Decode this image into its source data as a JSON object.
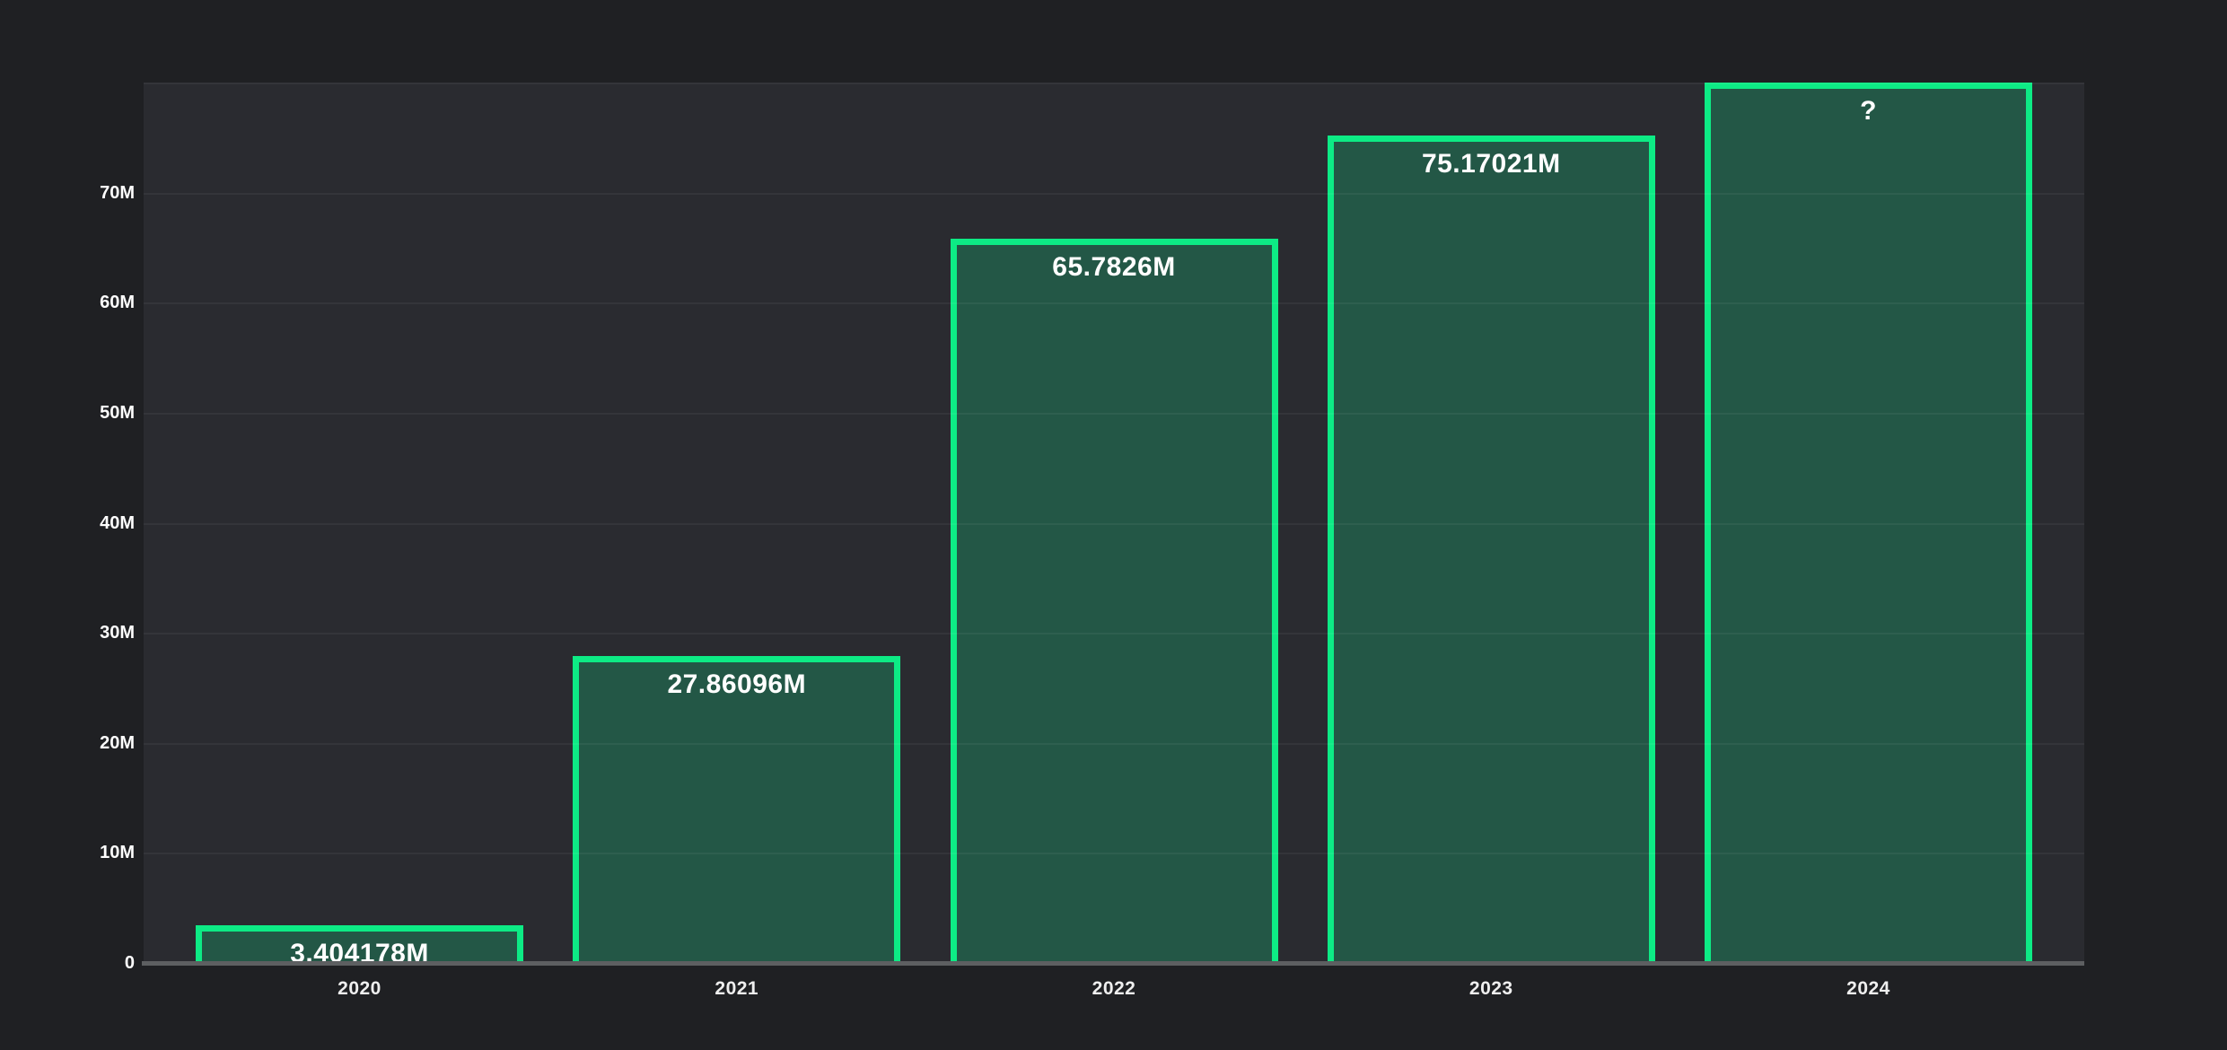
{
  "page": {
    "background": "#1F2023"
  },
  "chart": {
    "plot_background": "#2A2B30",
    "grid_color": "rgba(255,255,255,0.05)",
    "axis_line_color": "#5D5F61",
    "bar_fill": "#235746",
    "bar_border": "#0DEB85",
    "value_label_color": "#FFFFFF",
    "x_tick_color": "#EFEFEF",
    "y_tick_color": "#FFFFFF"
  },
  "chart_data": {
    "type": "bar",
    "title": "",
    "xlabel": "",
    "ylabel": "",
    "unit": "M",
    "categories": [
      "2020",
      "2021",
      "2022",
      "2023",
      "2024"
    ],
    "values": [
      3.404178,
      27.86096,
      65.7826,
      75.17021,
      null
    ],
    "bar_labels": [
      "3.404178M",
      "27.86096M",
      "65.7826M",
      "75.17021M",
      "?"
    ],
    "unknown_bar_display_value": 80,
    "ylim": [
      0,
      80
    ],
    "y_ticks": [
      {
        "label": "70M",
        "value": 70
      },
      {
        "label": "60M",
        "value": 60
      },
      {
        "label": "50M",
        "value": 50
      },
      {
        "label": "40M",
        "value": 40
      },
      {
        "label": "30M",
        "value": 30
      },
      {
        "label": "20M",
        "value": 20
      },
      {
        "label": "10M",
        "value": 10
      },
      {
        "label": "0",
        "value": 0
      }
    ],
    "gridline_values": [
      80,
      70,
      60,
      50,
      40,
      30,
      20,
      10
    ],
    "grid": "horizontal",
    "legend": null
  }
}
